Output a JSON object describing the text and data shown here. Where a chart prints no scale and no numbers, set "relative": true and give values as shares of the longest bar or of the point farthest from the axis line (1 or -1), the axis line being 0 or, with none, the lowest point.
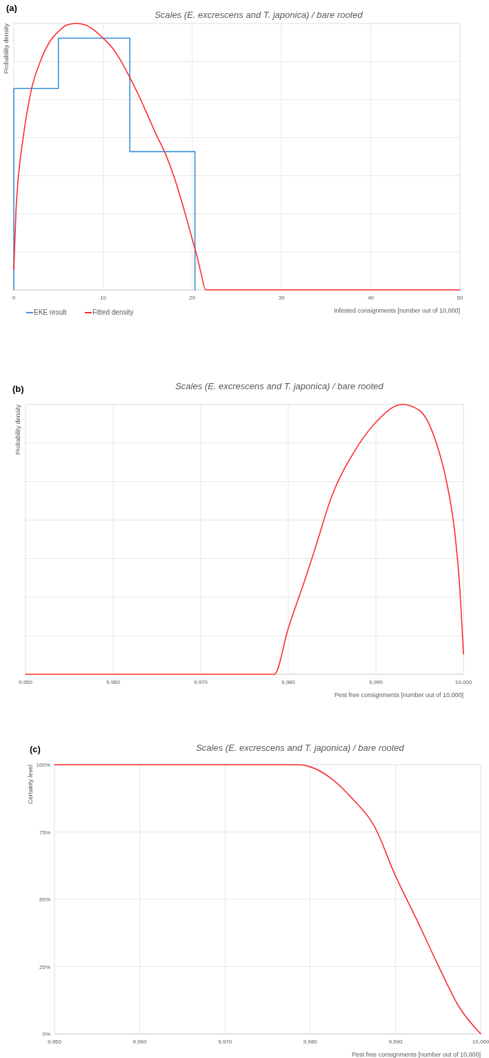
{
  "chart_data": [
    {
      "type": "line",
      "title": "Scales (E. excrescens and T. japonica)  / bare rooted",
      "annotations": [
        "(a)"
      ],
      "xlabel": "Infested consignments [number out of 10,000]",
      "ylabel": "Probability density",
      "relative": true,
      "xlim": [
        0,
        50
      ],
      "xticks": [
        0,
        10,
        20,
        30,
        40,
        50
      ],
      "grid": true,
      "legend": "bottom left",
      "series": [
        {
          "name": "EKE result",
          "type": "step",
          "color": "#3a8fd6",
          "x": [
            0,
            0,
            5,
            13,
            20.3
          ],
          "values": [
            0,
            0.756,
            0.945,
            0.519,
            0
          ]
        },
        {
          "name": "Fitted density",
          "color": "#ff2a2a",
          "x": [
            0,
            0.25,
            0.5,
            1,
            1.5,
            2,
            3,
            4,
            5,
            6,
            7,
            8,
            9,
            10,
            11,
            12,
            13,
            14,
            15,
            16,
            17,
            18,
            19,
            20,
            20.5,
            21,
            21.5,
            50
          ],
          "values": [
            0.075,
            0.3,
            0.42,
            0.56,
            0.67,
            0.756,
            0.86,
            0.93,
            0.97,
            0.995,
            1,
            0.995,
            0.975,
            0.945,
            0.91,
            0.86,
            0.797,
            0.73,
            0.655,
            0.58,
            0.51,
            0.42,
            0.31,
            0.19,
            0.13,
            0.06,
            0,
            0
          ]
        }
      ]
    },
    {
      "type": "line",
      "title": "Scales (E. excrescens and T. japonica)  / bare rooted",
      "annotations": [
        "(b)"
      ],
      "xlabel": "Pest free consignments [number out of 10,000]",
      "ylabel": "Probability density",
      "relative": true,
      "xlim": [
        9950,
        10000
      ],
      "xticks": [
        {
          "value": 9950,
          "label": "9,950"
        },
        {
          "value": 9960,
          "label": "9,960"
        },
        {
          "value": 9970,
          "label": "9,970"
        },
        {
          "value": 9980,
          "label": "9,980"
        },
        {
          "value": 9990,
          "label": "9,990"
        },
        {
          "value": 10000,
          "label": "10,000"
        }
      ],
      "grid": true,
      "series": [
        {
          "color": "#ff2a2a",
          "x": [
            9950,
            9978.4,
            9980,
            9982,
            9983,
            9985,
            9987.5,
            9990,
            9993,
            9995,
            9997,
            9998,
            9999,
            9999.5,
            10000
          ],
          "values": [
            0,
            0,
            0.171,
            0.36,
            0.46,
            0.663,
            0.823,
            0.934,
            1,
            0.977,
            0.847,
            0.724,
            0.527,
            0.355,
            0.075
          ]
        }
      ]
    },
    {
      "type": "line",
      "title": "Scales (E. excrescens and T. japonica)  / bare rooted",
      "annotations": [
        "(c)"
      ],
      "xlabel": "Pest free consignments [number out of 10,000]",
      "ylabel": "Certainty level",
      "xlim": [
        9950,
        10000
      ],
      "xticks": [
        {
          "value": 9950,
          "label": "9,950"
        },
        {
          "value": 9960,
          "label": "9,960"
        },
        {
          "value": 9970,
          "label": "9,970"
        },
        {
          "value": 9980,
          "label": "9,980"
        },
        {
          "value": 9990,
          "label": "9,990"
        },
        {
          "value": 10000,
          "label": "10,000"
        }
      ],
      "ylim": [
        0,
        100
      ],
      "yticks": [
        {
          "value": 0,
          "label": "0%"
        },
        {
          "value": 25,
          "label": "25%"
        },
        {
          "value": 50,
          "label": "50%"
        },
        {
          "value": 75,
          "label": "75%"
        },
        {
          "value": 100,
          "label": "100%"
        }
      ],
      "grid": true,
      "series": [
        {
          "color": "#ff2a2a",
          "x": [
            9950,
            9978.5,
            9980,
            9982.5,
            9985,
            9987.5,
            9990,
            9992.5,
            9995,
            9997.5,
            10000
          ],
          "values": [
            100,
            100,
            99.2,
            94.8,
            87.2,
            77.3,
            58.7,
            42.4,
            25.5,
            9.8,
            0
          ]
        }
      ]
    }
  ]
}
